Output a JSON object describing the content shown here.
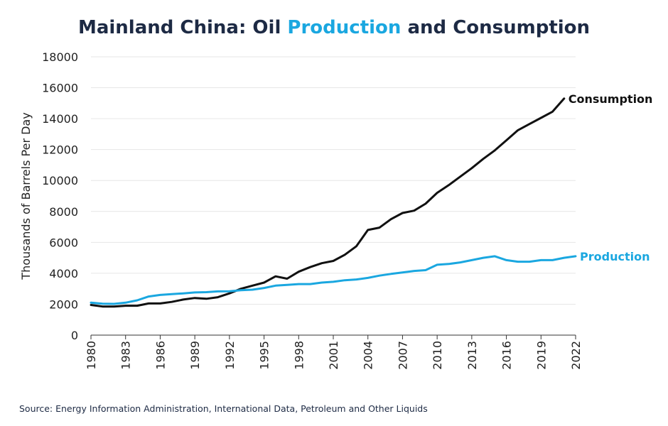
{
  "title": {
    "part1": "Mainland China: Oil ",
    "part2": "Production",
    "part3": " and Consumption"
  },
  "source": "Source: Energy Information Administration, International Data, Petroleum and Other Liquids",
  "colors": {
    "title": "#1d2a44",
    "production": "#1aa7e0",
    "consumption": "#111111",
    "grid": "#e6e6e6",
    "axis_text": "#222222"
  },
  "chart_data": {
    "type": "line",
    "title": "Mainland China: Oil Production and Consumption",
    "xlabel": "",
    "ylabel": "Thousands of Barrels Per Day",
    "xlim": [
      1980,
      2022
    ],
    "ylim": [
      0,
      18000
    ],
    "y_ticks": [
      0,
      2000,
      4000,
      6000,
      8000,
      10000,
      12000,
      14000,
      16000,
      18000
    ],
    "x_ticks": [
      1980,
      1983,
      1986,
      1989,
      1992,
      1995,
      1998,
      2001,
      2004,
      2007,
      2010,
      2013,
      2016,
      2019,
      2022
    ],
    "grid": true,
    "legend": "series names labeled at line ends (right)",
    "x": [
      1980,
      1981,
      1982,
      1983,
      1984,
      1985,
      1986,
      1987,
      1988,
      1989,
      1990,
      1991,
      1992,
      1993,
      1994,
      1995,
      1996,
      1997,
      1998,
      1999,
      2000,
      2001,
      2002,
      2003,
      2004,
      2005,
      2006,
      2007,
      2008,
      2009,
      2010,
      2011,
      2012,
      2013,
      2014,
      2015,
      2016,
      2017,
      2018,
      2019,
      2020,
      2021,
      2022
    ],
    "series": [
      {
        "name": "Consumption",
        "values": [
          1950,
          1850,
          1850,
          1900,
          1900,
          2050,
          2050,
          2150,
          2300,
          2400,
          2350,
          2450,
          2700,
          3000,
          3200,
          3400,
          3800,
          3650,
          4100,
          4400,
          4650,
          4800,
          5200,
          5750,
          6800,
          6950,
          7500,
          7900,
          8050,
          8500,
          9200,
          9700,
          10250,
          10800,
          11400,
          11950,
          12600,
          13250,
          13650,
          14050,
          14450,
          15300,
          null
        ]
      },
      {
        "name": "Production",
        "values": [
          2100,
          2030,
          2020,
          2100,
          2250,
          2500,
          2600,
          2650,
          2700,
          2760,
          2780,
          2830,
          2840,
          2900,
          2940,
          3050,
          3200,
          3250,
          3300,
          3300,
          3400,
          3450,
          3550,
          3600,
          3700,
          3850,
          3960,
          4050,
          4150,
          4200,
          4550,
          4600,
          4700,
          4850,
          5000,
          5100,
          4850,
          4750,
          4750,
          4850,
          4850,
          5000,
          5100
        ]
      }
    ]
  }
}
